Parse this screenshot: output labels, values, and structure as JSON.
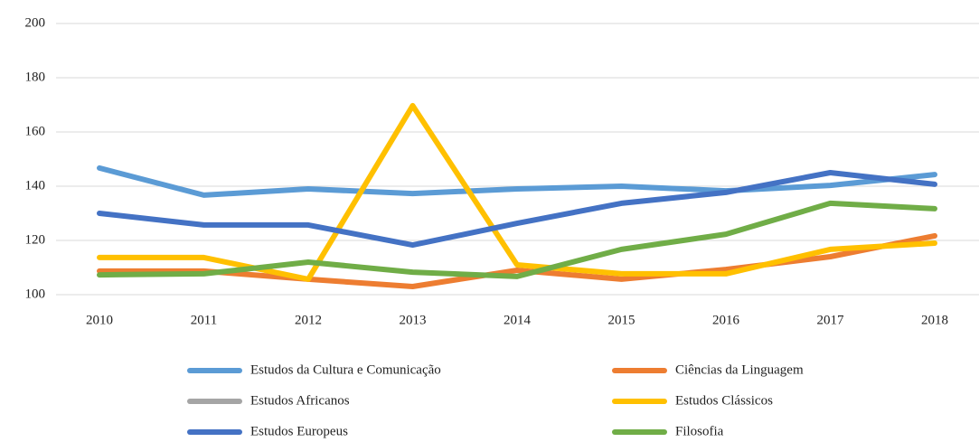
{
  "chart_data": {
    "type": "line",
    "categories": [
      "2010",
      "2011",
      "2012",
      "2013",
      "2014",
      "2015",
      "2016",
      "2017",
      "2018"
    ],
    "series": [
      {
        "name": "Estudos da Cultura e Comunicação",
        "color": "#5b9bd5",
        "values": [
          146.7,
          136.7,
          139,
          137.3,
          139,
          140,
          138.3,
          140.3,
          144.3
        ]
      },
      {
        "name": "Ciências da Linguagem",
        "color": "#ed7d31",
        "values": [
          108.7,
          108.7,
          105.7,
          103,
          109,
          105.7,
          109.3,
          114,
          121.7
        ]
      },
      {
        "name": "Estudos Africanos",
        "color": "#a5a5a5",
        "values": [
          null,
          null,
          null,
          null,
          null,
          null,
          null,
          null,
          null
        ]
      },
      {
        "name": "Estudos Clássicos",
        "color": "#ffc000",
        "values": [
          113.7,
          113.7,
          105.7,
          169.7,
          111,
          107.7,
          107.7,
          116.7,
          119
        ]
      },
      {
        "name": "Estudos Europeus",
        "color": "#4472c4",
        "values": [
          130,
          125.7,
          125.7,
          118.3,
          126.3,
          133.7,
          137.7,
          145,
          140.7
        ]
      },
      {
        "name": "Filosofia",
        "color": "#70ad47",
        "values": [
          107.3,
          107.7,
          112,
          108.3,
          106.7,
          116.7,
          122.3,
          133.7,
          131.7
        ]
      }
    ],
    "ylim": [
      100,
      200
    ],
    "yticks": [
      100,
      120,
      140,
      160,
      180,
      200
    ],
    "grid": true
  }
}
